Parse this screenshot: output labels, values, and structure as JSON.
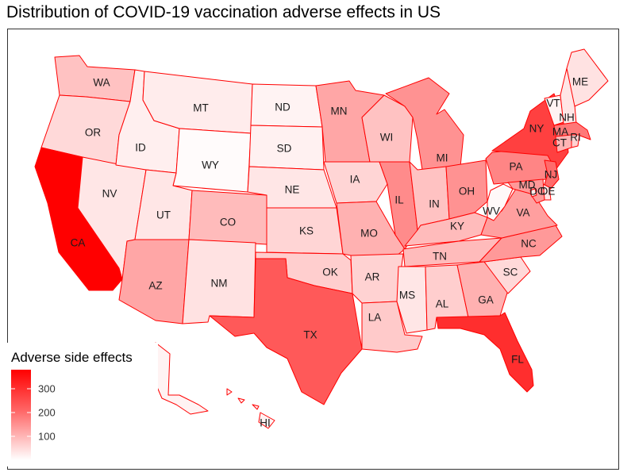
{
  "title": "Distribution of COVID-19 vaccination adverse effects in US",
  "legend": {
    "title": "Adverse side effects",
    "ticks": [
      {
        "value": 100,
        "label": "100"
      },
      {
        "value": 200,
        "label": "200"
      },
      {
        "value": 300,
        "label": "300"
      }
    ],
    "range": [
      0,
      380
    ],
    "color_low": "#ffffff",
    "color_high": "#ff0000"
  },
  "colors": {
    "border": "#ff0000",
    "panel_border": "#333333",
    "text": "#1a1a1a"
  },
  "chart_data": {
    "type": "choropleth",
    "title": "Distribution of COVID-19 vaccination adverse effects in US",
    "legend_title": "Adverse side effects",
    "states": [
      {
        "abbr": "WA",
        "value": 70
      },
      {
        "abbr": "OR",
        "value": 40
      },
      {
        "abbr": "CA",
        "value": 380
      },
      {
        "abbr": "NV",
        "value": 25
      },
      {
        "abbr": "ID",
        "value": 15
      },
      {
        "abbr": "MT",
        "value": 18
      },
      {
        "abbr": "WY",
        "value": 3
      },
      {
        "abbr": "UT",
        "value": 25
      },
      {
        "abbr": "AZ",
        "value": 110
      },
      {
        "abbr": "CO",
        "value": 80
      },
      {
        "abbr": "NM",
        "value": 30
      },
      {
        "abbr": "ND",
        "value": 10
      },
      {
        "abbr": "SD",
        "value": 12
      },
      {
        "abbr": "NE",
        "value": 25
      },
      {
        "abbr": "KS",
        "value": 45
      },
      {
        "abbr": "OK",
        "value": 55
      },
      {
        "abbr": "TX",
        "value": 230
      },
      {
        "abbr": "MN",
        "value": 110
      },
      {
        "abbr": "IA",
        "value": 45
      },
      {
        "abbr": "MO",
        "value": 95
      },
      {
        "abbr": "AR",
        "value": 50
      },
      {
        "abbr": "LA",
        "value": 60
      },
      {
        "abbr": "WI",
        "value": 70
      },
      {
        "abbr": "IL",
        "value": 150
      },
      {
        "abbr": "MI",
        "value": 140
      },
      {
        "abbr": "IN",
        "value": 70
      },
      {
        "abbr": "OH",
        "value": 140
      },
      {
        "abbr": "KY",
        "value": 80
      },
      {
        "abbr": "TN",
        "value": 80
      },
      {
        "abbr": "MS",
        "value": 25
      },
      {
        "abbr": "AL",
        "value": 55
      },
      {
        "abbr": "GA",
        "value": 95
      },
      {
        "abbr": "FL",
        "value": 300
      },
      {
        "abbr": "SC",
        "value": 40
      },
      {
        "abbr": "NC",
        "value": 130
      },
      {
        "abbr": "VA",
        "value": 120
      },
      {
        "abbr": "WV",
        "value": 5
      },
      {
        "abbr": "PA",
        "value": 160
      },
      {
        "abbr": "NY",
        "value": 270
      },
      {
        "abbr": "VT",
        "value": 10
      },
      {
        "abbr": "NH",
        "value": 25
      },
      {
        "abbr": "ME",
        "value": 30
      },
      {
        "abbr": "MA",
        "value": 180
      },
      {
        "abbr": "CT",
        "value": 90
      },
      {
        "abbr": "RI",
        "value": 50
      },
      {
        "abbr": "NJ",
        "value": 200
      },
      {
        "abbr": "DE",
        "value": 30
      },
      {
        "abbr": "MD",
        "value": 130
      },
      {
        "abbr": "DC",
        "value": 20
      },
      {
        "abbr": "AK",
        "value": 10
      },
      {
        "abbr": "HI",
        "value": 10
      }
    ]
  }
}
